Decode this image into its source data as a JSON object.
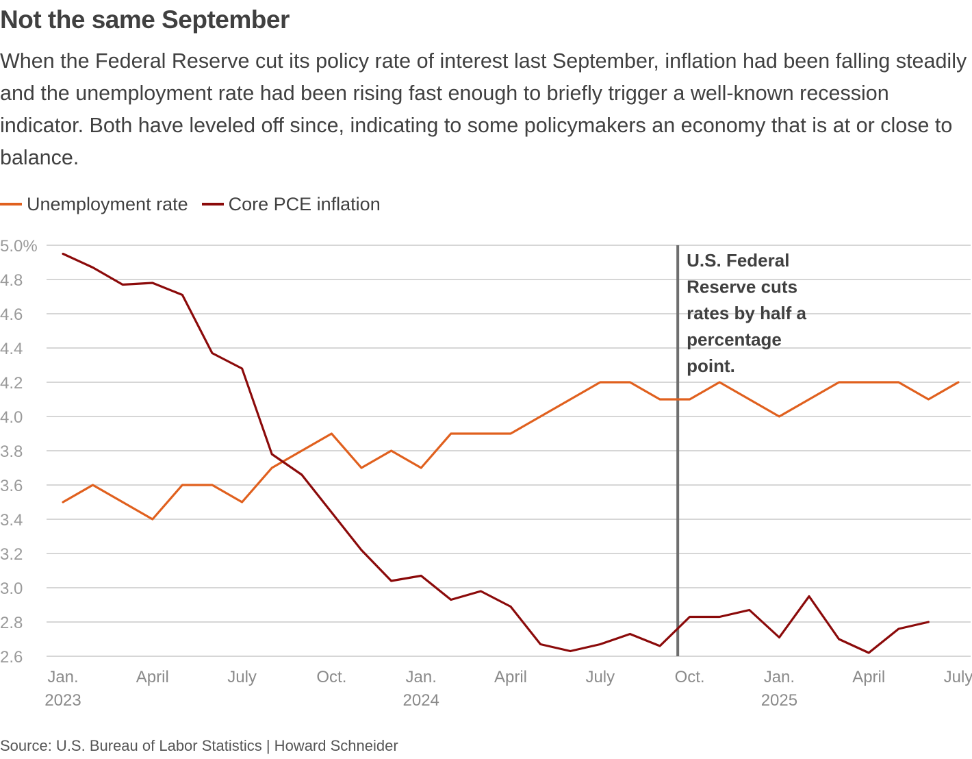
{
  "header": {
    "title": "Not the same September",
    "subtitle": "When the Federal Reserve cut its policy rate of interest last September, inflation had been falling steadily and the unemployment rate had been rising fast enough to briefly trigger a well-known recession indicator. Both have leveled off since, indicating to some policymakers an economy that is at or close to balance."
  },
  "legend": {
    "items": [
      {
        "label": "Unemployment rate",
        "color": "#e0601e"
      },
      {
        "label": "Core PCE inflation",
        "color": "#8b0a0a"
      }
    ]
  },
  "footer": {
    "source": "Source: U.S. Bureau of Labor Statistics | Howard Schneider"
  },
  "colors": {
    "unemployment": "#e0601e",
    "inflation": "#8b0a0a",
    "grid": "#c8c8c8",
    "annotation_line": "#6e6e6e"
  },
  "chart_data": {
    "type": "line",
    "title": "Not the same September",
    "xlabel": "",
    "ylabel": "",
    "ylim": [
      2.6,
      5.0
    ],
    "y_ticks": [
      2.6,
      2.8,
      3.0,
      3.2,
      3.4,
      3.6,
      3.8,
      4.0,
      4.2,
      4.4,
      4.6,
      4.8,
      5.0
    ],
    "y_tick_labels": [
      "2.6",
      "2.8",
      "3.0",
      "3.2",
      "3.4",
      "3.6",
      "3.8",
      "4.0",
      "4.2",
      "4.4",
      "4.6",
      "4.8",
      "5.0%"
    ],
    "x_range": [
      "2023-01",
      "2025-07"
    ],
    "x_ticks": [
      {
        "month": 0,
        "label": "Jan.",
        "year": "2023"
      },
      {
        "month": 3,
        "label": "April",
        "year": ""
      },
      {
        "month": 6,
        "label": "July",
        "year": ""
      },
      {
        "month": 9,
        "label": "Oct.",
        "year": ""
      },
      {
        "month": 12,
        "label": "Jan.",
        "year": "2024"
      },
      {
        "month": 15,
        "label": "April",
        "year": ""
      },
      {
        "month": 18,
        "label": "July",
        "year": ""
      },
      {
        "month": 21,
        "label": "Oct.",
        "year": ""
      },
      {
        "month": 24,
        "label": "Jan.",
        "year": "2025"
      },
      {
        "month": 27,
        "label": "April",
        "year": ""
      },
      {
        "month": 30,
        "label": "July",
        "year": ""
      }
    ],
    "legend_position": "top-left",
    "grid": true,
    "series": [
      {
        "name": "Unemployment rate",
        "color": "#e0601e",
        "start": "2023-01",
        "values": [
          3.5,
          3.6,
          3.5,
          3.4,
          3.6,
          3.6,
          3.5,
          3.7,
          3.8,
          3.9,
          3.7,
          3.8,
          3.7,
          3.9,
          3.9,
          3.9,
          4.0,
          4.1,
          4.2,
          4.2,
          4.1,
          4.1,
          4.2,
          4.1,
          4.0,
          4.1,
          4.2,
          4.2,
          4.2,
          4.1,
          4.2
        ]
      },
      {
        "name": "Core PCE inflation",
        "color": "#8b0a0a",
        "start": "2023-01",
        "values": [
          4.95,
          4.87,
          4.77,
          4.78,
          4.71,
          4.37,
          4.28,
          3.78,
          3.66,
          3.44,
          3.22,
          3.04,
          3.07,
          2.93,
          2.98,
          2.89,
          2.67,
          2.63,
          2.67,
          2.73,
          2.66,
          2.83,
          2.83,
          2.87,
          2.71,
          2.95,
          2.7,
          2.62,
          2.76,
          2.8
        ]
      }
    ],
    "annotations": [
      {
        "type": "vline",
        "month": 20.6,
        "date": "2024-09-18",
        "lines": [
          "U.S. Federal",
          "Reserve cuts",
          "rates by half a",
          "percentage",
          "point."
        ]
      }
    ]
  }
}
